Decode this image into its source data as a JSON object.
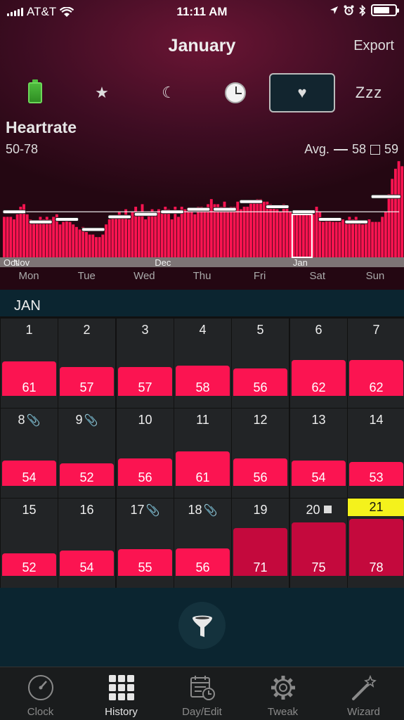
{
  "status": {
    "carrier": "AT&T",
    "time": "11:11 AM"
  },
  "header": {
    "title": "January",
    "export_label": "Export"
  },
  "mode_tabs": [
    {
      "name": "battery",
      "icon": "battery-icon"
    },
    {
      "name": "star",
      "icon": "star-icon",
      "glyph": "★"
    },
    {
      "name": "moon",
      "icon": "moon-icon",
      "glyph": "☾"
    },
    {
      "name": "clock",
      "icon": "clock-icon"
    },
    {
      "name": "heart",
      "icon": "heart-icon",
      "glyph": "♥",
      "selected": true
    },
    {
      "name": "zzz",
      "icon": "zzz-icon",
      "label": "Zzz"
    }
  ],
  "chart_data": {
    "type": "bar",
    "title": "Heartrate",
    "range": "50-78",
    "avg_label": "Avg.",
    "avg_line_value": "58",
    "avg_box_value": "59",
    "month_markers": [
      {
        "label": "Oct",
        "index": 0
      },
      {
        "label": "Nov",
        "index": 3
      },
      {
        "label": "Dec",
        "index": 46
      },
      {
        "label": "Jan",
        "index": 88
      }
    ],
    "weekdays": [
      "Mon",
      "Tue",
      "Wed",
      "Thu",
      "Fri",
      "Sat",
      "Sun"
    ],
    "ylim": [
      40,
      80
    ],
    "values": [
      56,
      56,
      56,
      55,
      57,
      60,
      61,
      57,
      55,
      54,
      54,
      56,
      55,
      56,
      55,
      56,
      57,
      53,
      54,
      55,
      54,
      53,
      52,
      51,
      52,
      50,
      49,
      49,
      48,
      48,
      49,
      53,
      55,
      56,
      56,
      58,
      56,
      59,
      55,
      58,
      60,
      58,
      61,
      55,
      58,
      59,
      58,
      59,
      58,
      60,
      59,
      55,
      60,
      56,
      60,
      59,
      59,
      59,
      57,
      60,
      60,
      59,
      61,
      63,
      61,
      61,
      60,
      62,
      59,
      60,
      60,
      62,
      59,
      60,
      60,
      62,
      62,
      63,
      63,
      62,
      62,
      61,
      60,
      59,
      58,
      61,
      60,
      58,
      58,
      58,
      57,
      57,
      57,
      58,
      57,
      60,
      58,
      54,
      55,
      55,
      54,
      54,
      54,
      55,
      54,
      56,
      55,
      56,
      54,
      53,
      54,
      55,
      54,
      54,
      54,
      56,
      58,
      65,
      71,
      75,
      78,
      76
    ],
    "weekly_avg": [
      {
        "start": 0,
        "end": 7,
        "value": 58
      },
      {
        "start": 8,
        "end": 15,
        "value": 54
      },
      {
        "start": 16,
        "end": 23,
        "value": 55
      },
      {
        "start": 24,
        "end": 31,
        "value": 51
      },
      {
        "start": 32,
        "end": 39,
        "value": 56
      },
      {
        "start": 40,
        "end": 47,
        "value": 57
      },
      {
        "start": 48,
        "end": 55,
        "value": 58
      },
      {
        "start": 56,
        "end": 63,
        "value": 59
      },
      {
        "start": 64,
        "end": 71,
        "value": 59
      },
      {
        "start": 72,
        "end": 79,
        "value": 62
      },
      {
        "start": 80,
        "end": 87,
        "value": 60
      },
      {
        "start": 88,
        "end": 95,
        "value": 58
      },
      {
        "start": 96,
        "end": 103,
        "value": 55
      },
      {
        "start": 104,
        "end": 111,
        "value": 54
      },
      {
        "start": 112,
        "end": 121,
        "value": 64
      }
    ],
    "overall_avg": 58,
    "selected_week": [
      88,
      94
    ]
  },
  "calendar": {
    "month_label": "JAN",
    "weeks": [
      [
        {
          "day": "1",
          "value": "61"
        },
        {
          "day": "2",
          "value": "57"
        },
        {
          "day": "3",
          "value": "57"
        },
        {
          "day": "4",
          "value": "58"
        },
        {
          "day": "5",
          "value": "56"
        },
        {
          "day": "6",
          "value": "62"
        },
        {
          "day": "7",
          "value": "62"
        }
      ],
      [
        {
          "day": "8",
          "value": "54",
          "clip": true
        },
        {
          "day": "9",
          "value": "52",
          "clip": true
        },
        {
          "day": "10",
          "value": "56"
        },
        {
          "day": "11",
          "value": "61"
        },
        {
          "day": "12",
          "value": "56"
        },
        {
          "day": "13",
          "value": "54"
        },
        {
          "day": "14",
          "value": "53"
        }
      ],
      [
        {
          "day": "15",
          "value": "52"
        },
        {
          "day": "16",
          "value": "54"
        },
        {
          "day": "17",
          "value": "55",
          "clip": true
        },
        {
          "day": "18",
          "value": "56",
          "clip": true
        },
        {
          "day": "19",
          "value": "71",
          "dark": true
        },
        {
          "day": "20",
          "value": "75",
          "dark": true,
          "square": true
        },
        {
          "day": "21",
          "value": "78",
          "dark": true,
          "today": true
        }
      ]
    ]
  },
  "tabbar": [
    {
      "label": "Clock",
      "icon": "gauge-icon"
    },
    {
      "label": "History",
      "icon": "grid-icon",
      "active": true
    },
    {
      "label": "Day/Edit",
      "icon": "calendar-edit-icon"
    },
    {
      "label": "Tweak",
      "icon": "gear-icon"
    },
    {
      "label": "Wizard",
      "icon": "magic-wand-icon"
    }
  ],
  "colors": {
    "bar": "#fb1451",
    "bar_dark": "#c4093d",
    "today": "#f4f21c"
  }
}
